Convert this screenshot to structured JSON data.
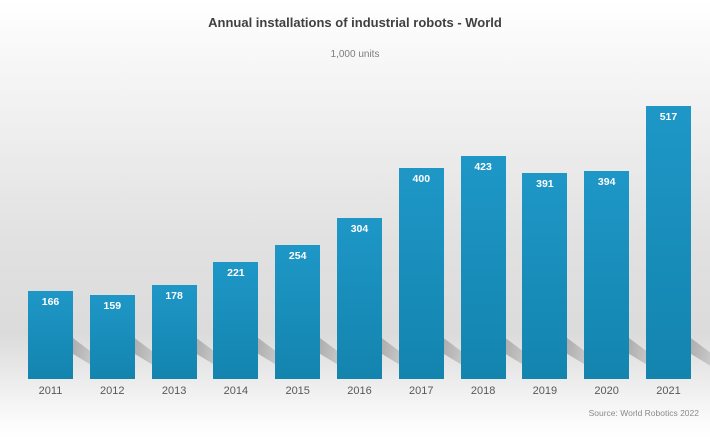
{
  "header": {
    "title": "Annual installations of industrial robots - World",
    "unit_label": "1,000 units"
  },
  "footer": {
    "source": "Source: World Robotics 2022"
  },
  "colors": {
    "bar_gradient_top": "#1e97c7",
    "bar_gradient_bottom": "#1384ae",
    "value_label": "#ffffff",
    "title": "#404040",
    "subtitle": "#7d7d7d",
    "axis_label": "#595959",
    "source": "#8a8a8a"
  },
  "chart_data": {
    "type": "bar",
    "title": "Annual installations of industrial robots - World",
    "xlabel": "",
    "ylabel": "1,000 units",
    "categories": [
      "2011",
      "2012",
      "2013",
      "2014",
      "2015",
      "2016",
      "2017",
      "2018",
      "2019",
      "2020",
      "2021"
    ],
    "values": [
      166,
      159,
      178,
      221,
      254,
      304,
      400,
      423,
      391,
      394,
      517
    ],
    "ylim": [
      0,
      517
    ],
    "grid": false,
    "legend_position": "none",
    "value_labels": "inside-top, white bold",
    "source": "Source: World Robotics 2022"
  }
}
